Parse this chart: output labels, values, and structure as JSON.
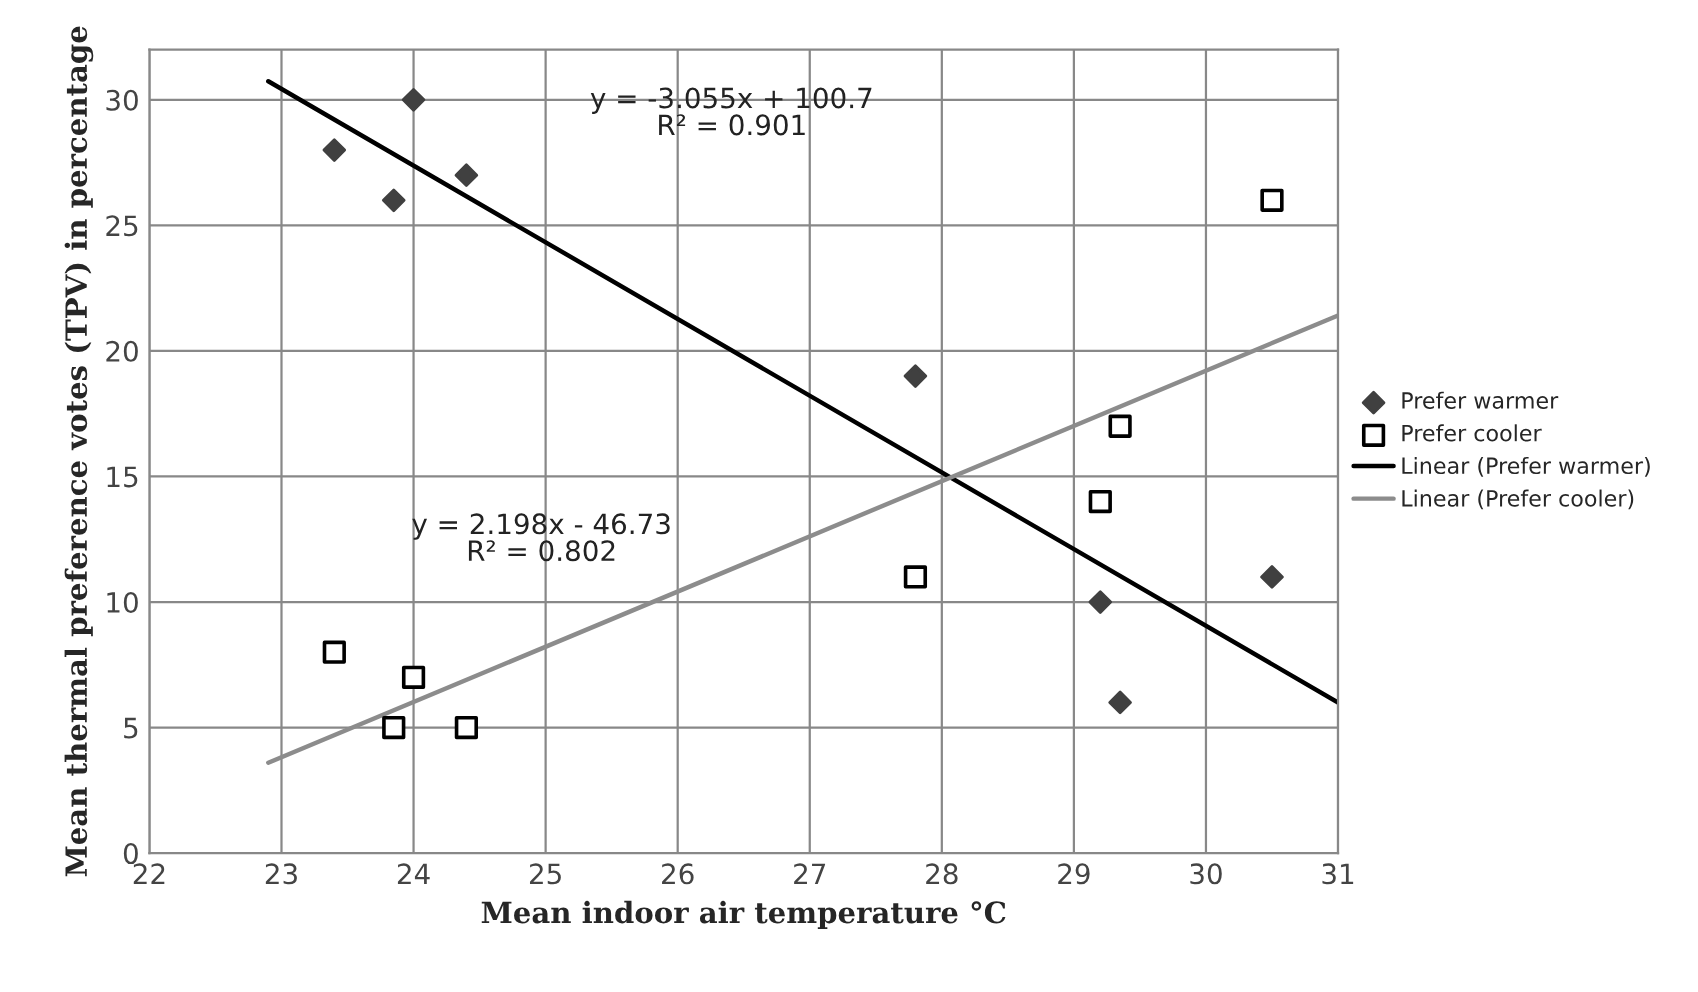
{
  "chart_data": {
    "type": "scatter",
    "xlabel": "Mean indoor air temperature °C",
    "ylabel": "Mean thermal preference votes (TPV) in percentage",
    "xlim": [
      22,
      31
    ],
    "xticks": [
      22,
      23,
      24,
      25,
      26,
      27,
      28,
      29,
      30,
      31
    ],
    "ylim": [
      0,
      32
    ],
    "yticks": [
      0,
      5,
      10,
      15,
      20,
      25,
      30
    ],
    "grid": true,
    "legend": "right",
    "series": [
      {
        "name": "Prefer warmer",
        "marker": "diamond",
        "color": "#404040",
        "x": [
          23.4,
          24.0,
          23.85,
          24.4,
          27.8,
          29.2,
          29.35,
          30.5
        ],
        "values": [
          28,
          30,
          26,
          27,
          19,
          10,
          6,
          11
        ]
      },
      {
        "name": "Prefer cooler",
        "marker": "square",
        "color": "#000000",
        "x": [
          23.4,
          24.0,
          23.85,
          24.4,
          27.8,
          29.2,
          29.35,
          30.5
        ],
        "values": [
          8,
          7,
          5,
          5,
          11,
          14,
          17,
          26
        ]
      },
      {
        "name": "Linear (Prefer warmer)",
        "type": "line",
        "marker": "none",
        "color": "#000000",
        "x": [
          22.9,
          31
        ],
        "values": [
          30.74,
          6.0
        ]
      },
      {
        "name": "Linear (Prefer cooler)",
        "type": "line",
        "marker": "none",
        "color": "#8c8c8c",
        "x": [
          22.9,
          31
        ],
        "values": [
          3.6,
          21.41
        ]
      }
    ],
    "annotations": [
      "y = -3.055x + 100.7\nR² = 0.901",
      "y = 2.198x - 46.73\nR² = 0.802"
    ]
  }
}
